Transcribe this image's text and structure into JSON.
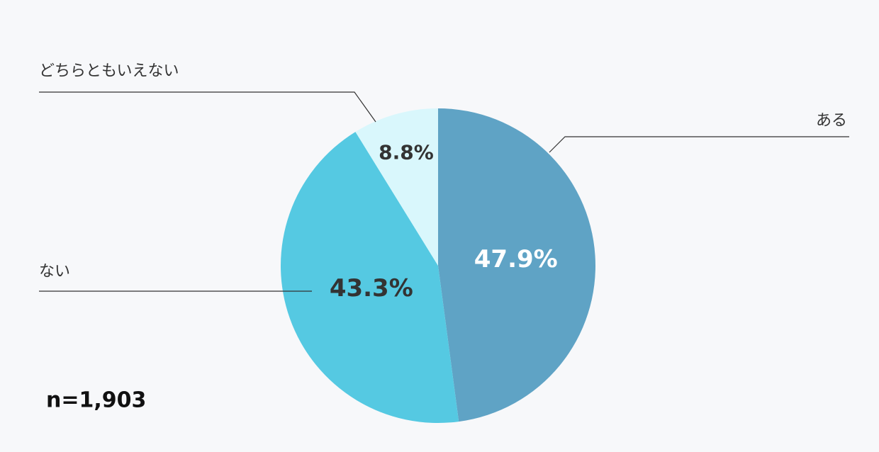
{
  "chart_data": {
    "type": "pie",
    "categories": [
      "ある",
      "ない",
      "どちらともいえない"
    ],
    "values": [
      47.9,
      43.3,
      8.8
    ],
    "value_labels": [
      "47.9%",
      "43.3%",
      "8.8%"
    ],
    "colors": [
      "#5fa3c5",
      "#55c9e2",
      "#d9f7fc"
    ],
    "note": "n=1,903"
  }
}
